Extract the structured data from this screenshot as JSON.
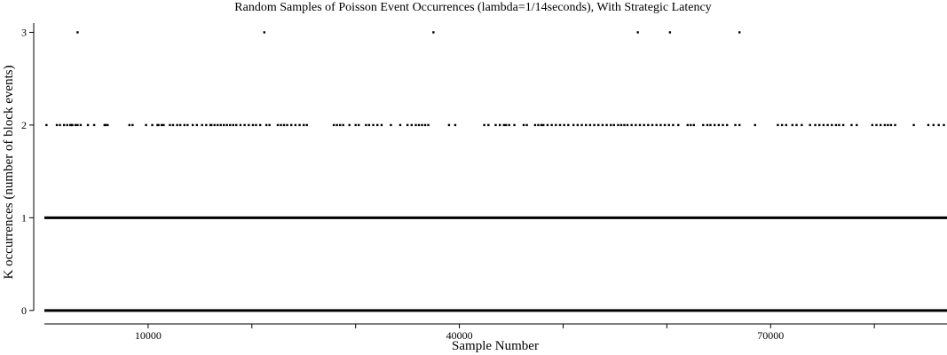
{
  "chart_data": {
    "type": "scatter",
    "title": "Random Samples of Poisson Event Occurrences (lambda=1/14seconds), With Strategic Latency",
    "xlabel": "Sample Number",
    "ylabel": "K occurrences (number of block events)",
    "xlim": [
      0,
      87000
    ],
    "ylim": [
      -0.04,
      3.1
    ],
    "x_ticks": [
      10000,
      40000,
      70000
    ],
    "x_minor_ticks": [
      10000,
      20000,
      30000,
      40000,
      50000,
      60000,
      70000,
      80000
    ],
    "y_ticks": [
      0,
      1,
      2,
      3
    ],
    "grid": false,
    "marker_color": "#000000",
    "dense_rows": [
      {
        "y": 0,
        "x_range": [
          0,
          87000
        ],
        "note": "continuous"
      },
      {
        "y": 1,
        "x_range": [
          0,
          87000
        ],
        "note": "continuous"
      }
    ],
    "points_k2": [
      200,
      1200,
      1500,
      1900,
      2200,
      2500,
      2600,
      2700,
      3000,
      3200,
      3500,
      4200,
      4800,
      5800,
      5900,
      6100,
      8200,
      8500,
      9800,
      10400,
      10900,
      11000,
      11300,
      11500,
      12100,
      12400,
      12800,
      13100,
      13500,
      13800,
      14300,
      14700,
      15200,
      15600,
      16000,
      16100,
      16400,
      16700,
      17000,
      17300,
      17600,
      17900,
      18200,
      18500,
      18900,
      19300,
      19700,
      20100,
      20400,
      20800,
      21400,
      21700,
      22500,
      22800,
      23100,
      23400,
      23800,
      24200,
      24600,
      25000,
      25300,
      27900,
      28200,
      28500,
      28800,
      29400,
      30000,
      30300,
      31000,
      31300,
      31700,
      32100,
      32500,
      33400,
      34300,
      35000,
      35400,
      35800,
      36100,
      36400,
      36700,
      37000,
      39000,
      39600,
      42400,
      42800,
      43500,
      43900,
      44300,
      44500,
      44800,
      45300,
      46200,
      46500,
      47300,
      47600,
      47900,
      48100,
      48500,
      48900,
      49300,
      49700,
      50100,
      50500,
      51000,
      51400,
      51800,
      52200,
      52600,
      53000,
      53400,
      53800,
      54200,
      54600,
      54900,
      55300,
      55600,
      55900,
      56200,
      56600,
      57000,
      57400,
      57800,
      58200,
      58600,
      59000,
      59400,
      59800,
      60200,
      60600,
      61100,
      62000,
      62300,
      62600,
      63500,
      63900,
      64200,
      64600,
      65000,
      65400,
      65800,
      66600,
      67000,
      68500,
      70700,
      71100,
      71500,
      72100,
      72500,
      73000,
      73800,
      74300,
      74700,
      75100,
      75500,
      75900,
      76300,
      76600,
      77000,
      77800,
      78300,
      79800,
      80200,
      80600,
      81000,
      81300,
      81600,
      82000,
      83800,
      85200,
      85700,
      86200,
      86700
    ],
    "points_k3": [
      3200,
      21200,
      37500,
      57200,
      60300,
      67000
    ]
  }
}
